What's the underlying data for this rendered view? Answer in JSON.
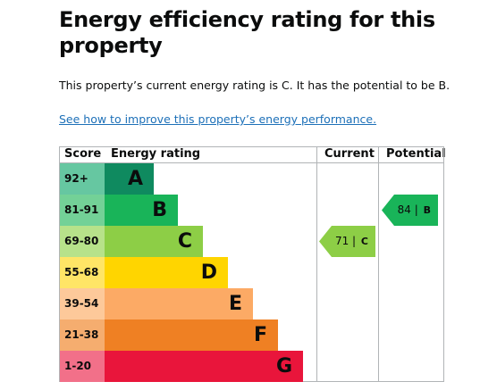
{
  "page": {
    "heading": "Energy efficiency rating for this property",
    "summary": "This property’s current energy rating is C. It has the potential to be B.",
    "improve_link": "See how to improve this property’s energy performance."
  },
  "table": {
    "headers": {
      "score": "Score",
      "rating": "Energy rating",
      "current": "Current",
      "potential": "Potential"
    },
    "bands": [
      {
        "score": "92+",
        "letter": "A",
        "color": "#0f8a5f",
        "score_color": "#66c7a1"
      },
      {
        "score": "81-91",
        "letter": "B",
        "color": "#19b459",
        "score_color": "#73d197"
      },
      {
        "score": "69-80",
        "letter": "C",
        "color": "#8dce46",
        "score_color": "#b7e28a"
      },
      {
        "score": "55-68",
        "letter": "D",
        "color": "#ffd500",
        "score_color": "#ffe566"
      },
      {
        "score": "39-54",
        "letter": "E",
        "color": "#fcaa65",
        "score_color": "#fdc99a"
      },
      {
        "score": "21-38",
        "letter": "F",
        "color": "#ef8023",
        "score_color": "#f5ad6f"
      },
      {
        "score": "1-20",
        "letter": "G",
        "color": "#e9153b",
        "score_color": "#f27089"
      }
    ],
    "current": {
      "value": "71",
      "separator": "|",
      "band": "C",
      "color": "#8dce46"
    },
    "potential": {
      "value": "84",
      "separator": "|",
      "band": "B",
      "color": "#19b459"
    }
  }
}
